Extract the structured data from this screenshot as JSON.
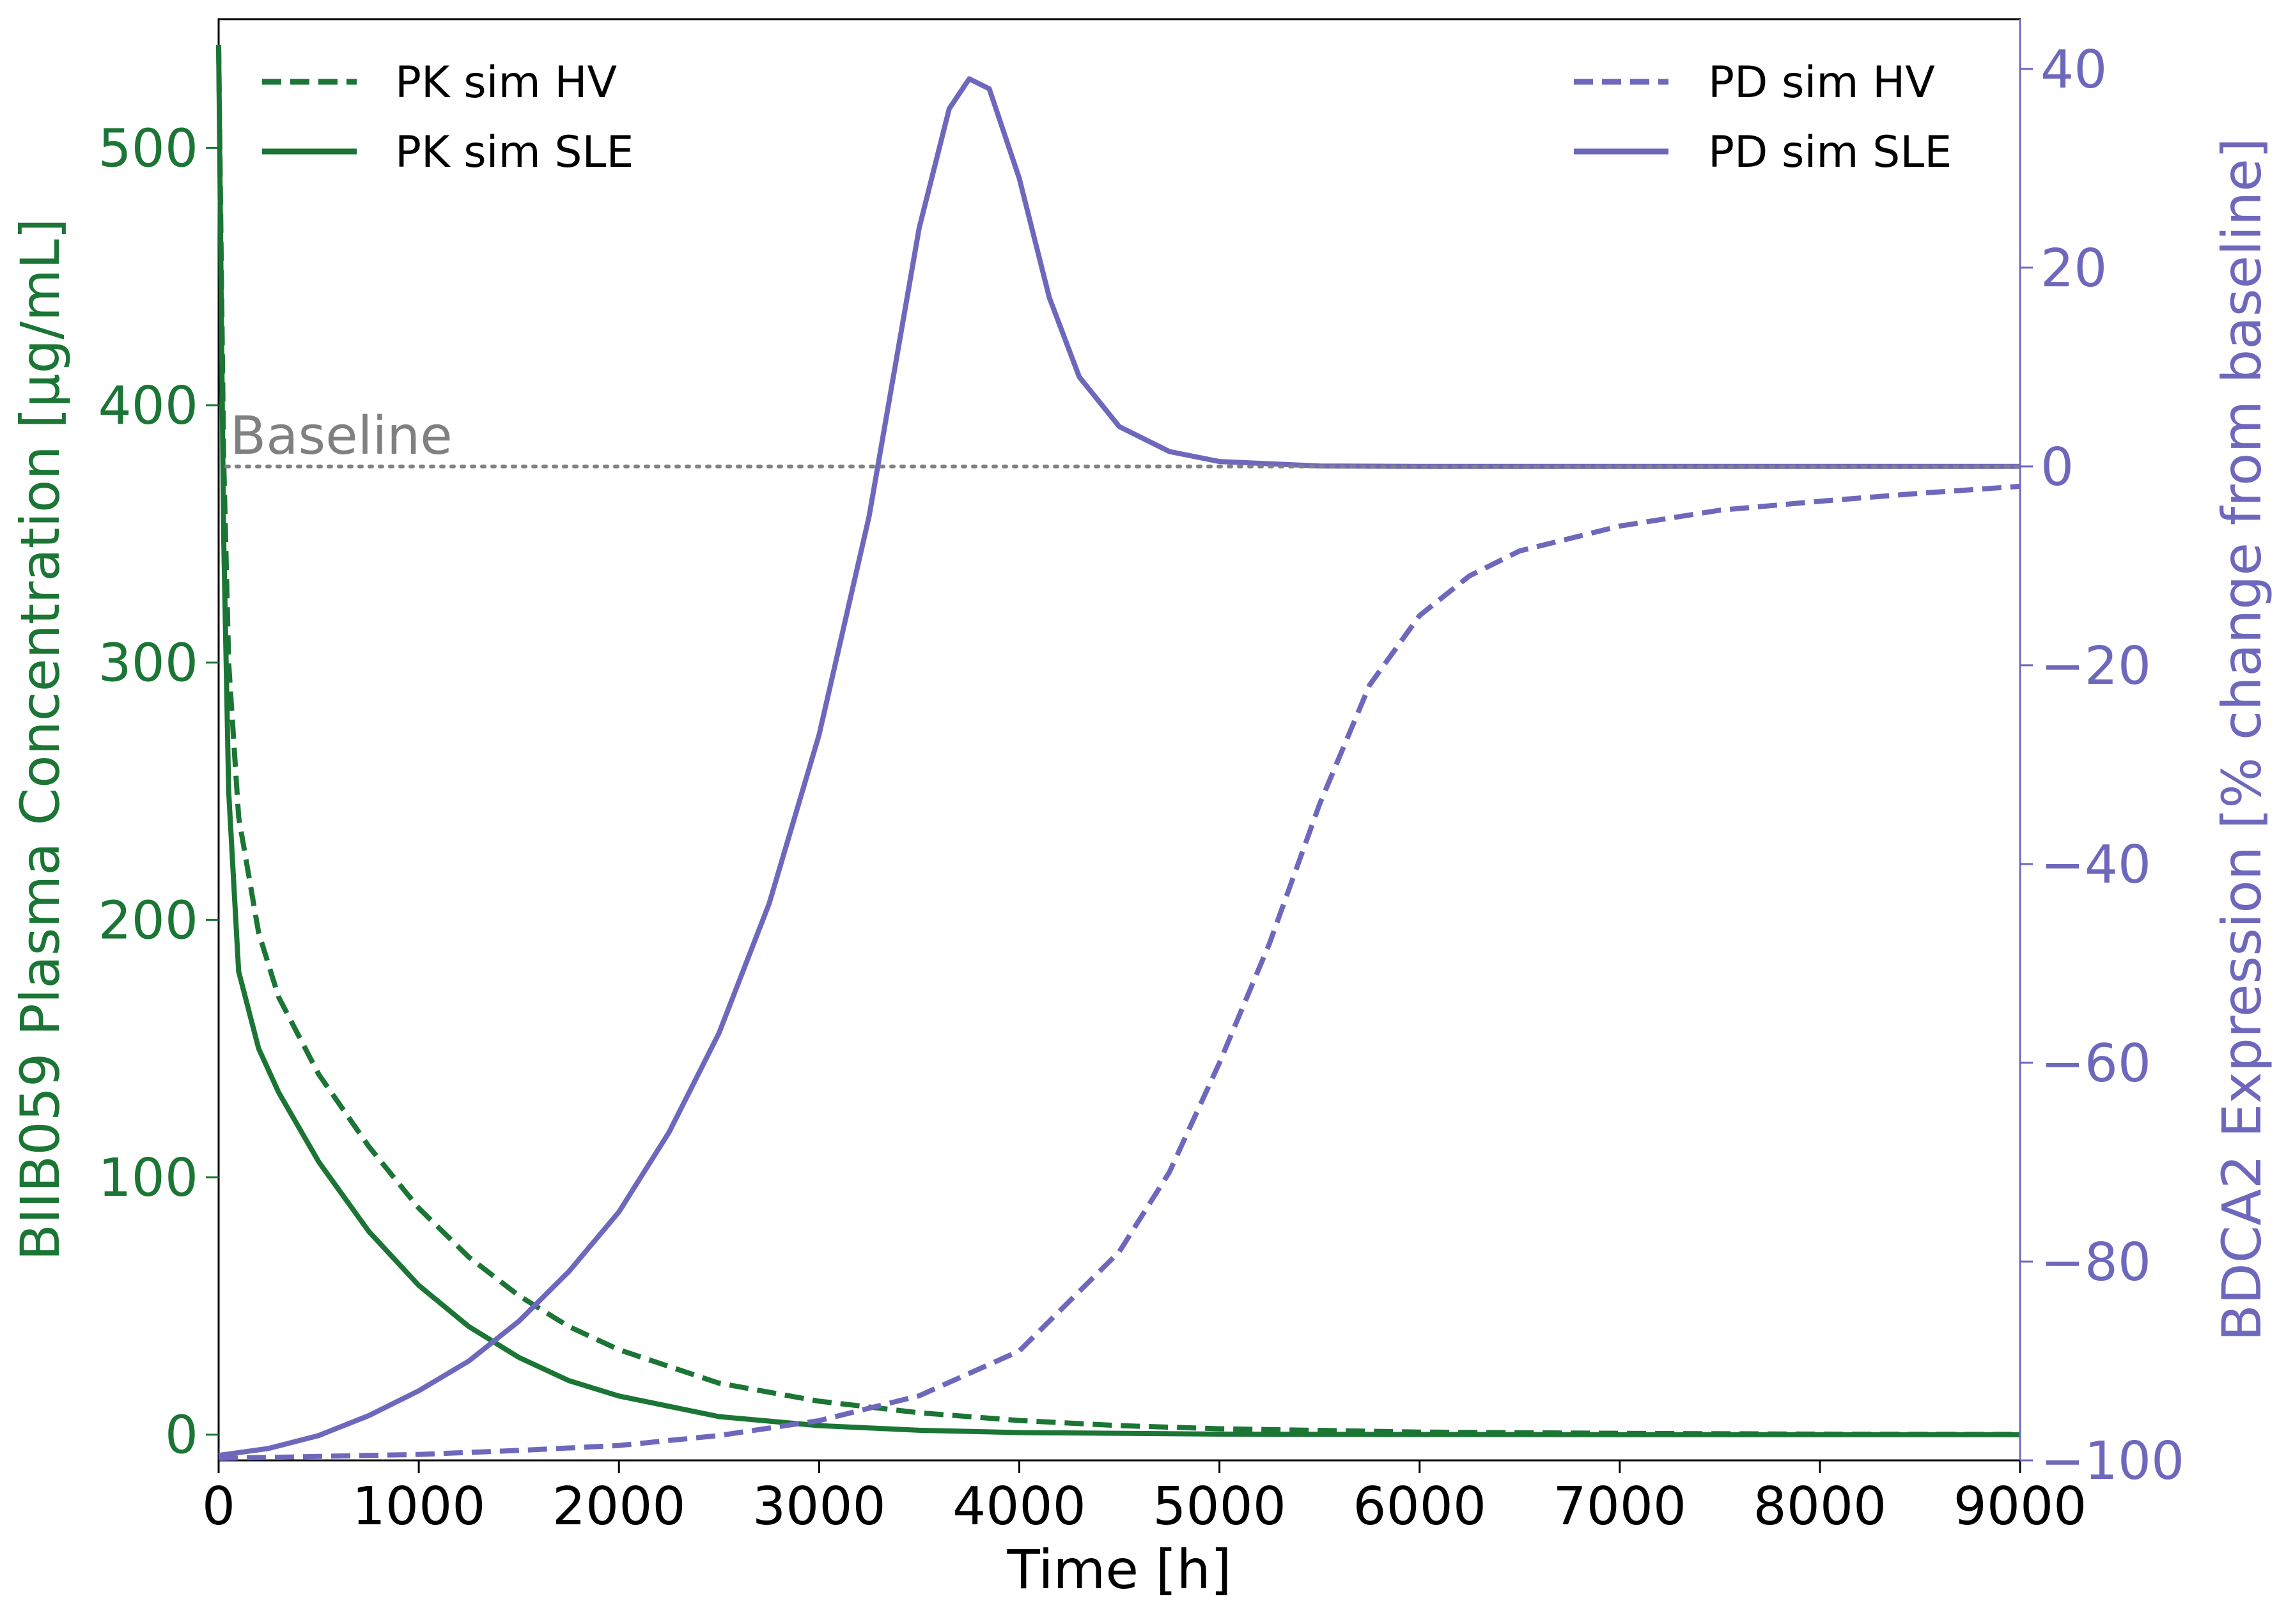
{
  "colors": {
    "pk": "#1b7534",
    "pd": "#6e68bd",
    "baseline": "#808080",
    "axes": "#000000"
  },
  "chart_data": {
    "type": "line",
    "title": "",
    "xlabel": "Time [h]",
    "ylabel_left": "BIIB059 Plasma Concentration [µg/mL]",
    "ylabel_right": "BDCA2 Expression [% change from baseline]",
    "xlim": [
      0,
      9000
    ],
    "ylim_left": [
      -10,
      550
    ],
    "ylim_right": [
      -100,
      45
    ],
    "x_ticks": [
      0,
      1000,
      2000,
      3000,
      4000,
      5000,
      6000,
      7000,
      8000,
      9000
    ],
    "y_ticks_left": [
      0,
      100,
      200,
      300,
      400,
      500
    ],
    "y_ticks_right": [
      -100,
      -80,
      -60,
      -40,
      -20,
      0,
      20,
      40
    ],
    "tick_labels_right": [
      "−100",
      "−80",
      "−60",
      "−40",
      "−20",
      "0",
      "20",
      "40"
    ],
    "grid": false,
    "annotation": {
      "text": "Baseline",
      "y_right": 0
    },
    "legend_left": {
      "position": "top-left",
      "entries": [
        "PK sim HV",
        "PK sim SLE"
      ]
    },
    "legend_right": {
      "position": "top-right",
      "entries": [
        "PD sim HV",
        "PD sim SLE"
      ]
    },
    "series": [
      {
        "name": "PK sim HV",
        "axis": "left",
        "style": "dashed",
        "color": "#1b7534",
        "x": [
          0,
          25,
          50,
          100,
          200,
          300,
          500,
          750,
          1000,
          1250,
          1500,
          1750,
          2000,
          2500,
          3000,
          3500,
          4000,
          4500,
          5000,
          6000,
          7000,
          8000,
          9000
        ],
        "y": [
          540,
          380,
          300,
          240,
          195,
          170,
          140,
          112,
          88,
          69,
          54,
          42,
          33,
          20,
          13,
          8.5,
          5.5,
          3.5,
          2.3,
          1,
          0.5,
          0.2,
          0.1
        ]
      },
      {
        "name": "PK sim SLE",
        "axis": "left",
        "style": "solid",
        "color": "#1b7534",
        "x": [
          0,
          25,
          50,
          100,
          200,
          300,
          500,
          750,
          1000,
          1250,
          1500,
          1750,
          2000,
          2500,
          3000,
          3500,
          4000,
          5000,
          6000,
          7000,
          8000,
          9000
        ],
        "y": [
          540,
          350,
          250,
          180,
          150,
          133,
          106,
          79,
          58,
          42,
          30,
          21,
          15,
          7,
          3.5,
          1.7,
          0.8,
          0.2,
          0.05,
          0,
          0,
          0
        ]
      },
      {
        "name": "PD sim HV",
        "axis": "right",
        "style": "dashed",
        "color": "#6e68bd",
        "x": [
          0,
          500,
          1000,
          1500,
          2000,
          2500,
          3000,
          3500,
          4000,
          4500,
          4750,
          5000,
          5250,
          5500,
          5750,
          6000,
          6250,
          6500,
          7000,
          7500,
          8000,
          8500,
          9000
        ],
        "y": [
          -99.8,
          -99.6,
          -99.4,
          -99,
          -98.5,
          -97.5,
          -96,
          -93.5,
          -89,
          -79,
          -71,
          -60,
          -48,
          -34,
          -22,
          -15,
          -11,
          -8.5,
          -6,
          -4.4,
          -3.5,
          -2.7,
          -2
        ]
      },
      {
        "name": "PD sim SLE",
        "axis": "right",
        "style": "solid",
        "color": "#6e68bd",
        "x": [
          0,
          250,
          500,
          750,
          1000,
          1250,
          1500,
          1750,
          2000,
          2250,
          2500,
          2750,
          3000,
          3250,
          3500,
          3650,
          3750,
          3850,
          4000,
          4150,
          4300,
          4500,
          4750,
          5000,
          5500,
          6000,
          7000,
          8000,
          9000
        ],
        "y": [
          -99.5,
          -98.8,
          -97.5,
          -95.5,
          -93,
          -90,
          -86,
          -81,
          -75,
          -67,
          -57,
          -44,
          -27,
          -5,
          24,
          36,
          39,
          38,
          29,
          17,
          9,
          4,
          1.5,
          0.5,
          0.05,
          0,
          0,
          0,
          0
        ]
      }
    ]
  }
}
